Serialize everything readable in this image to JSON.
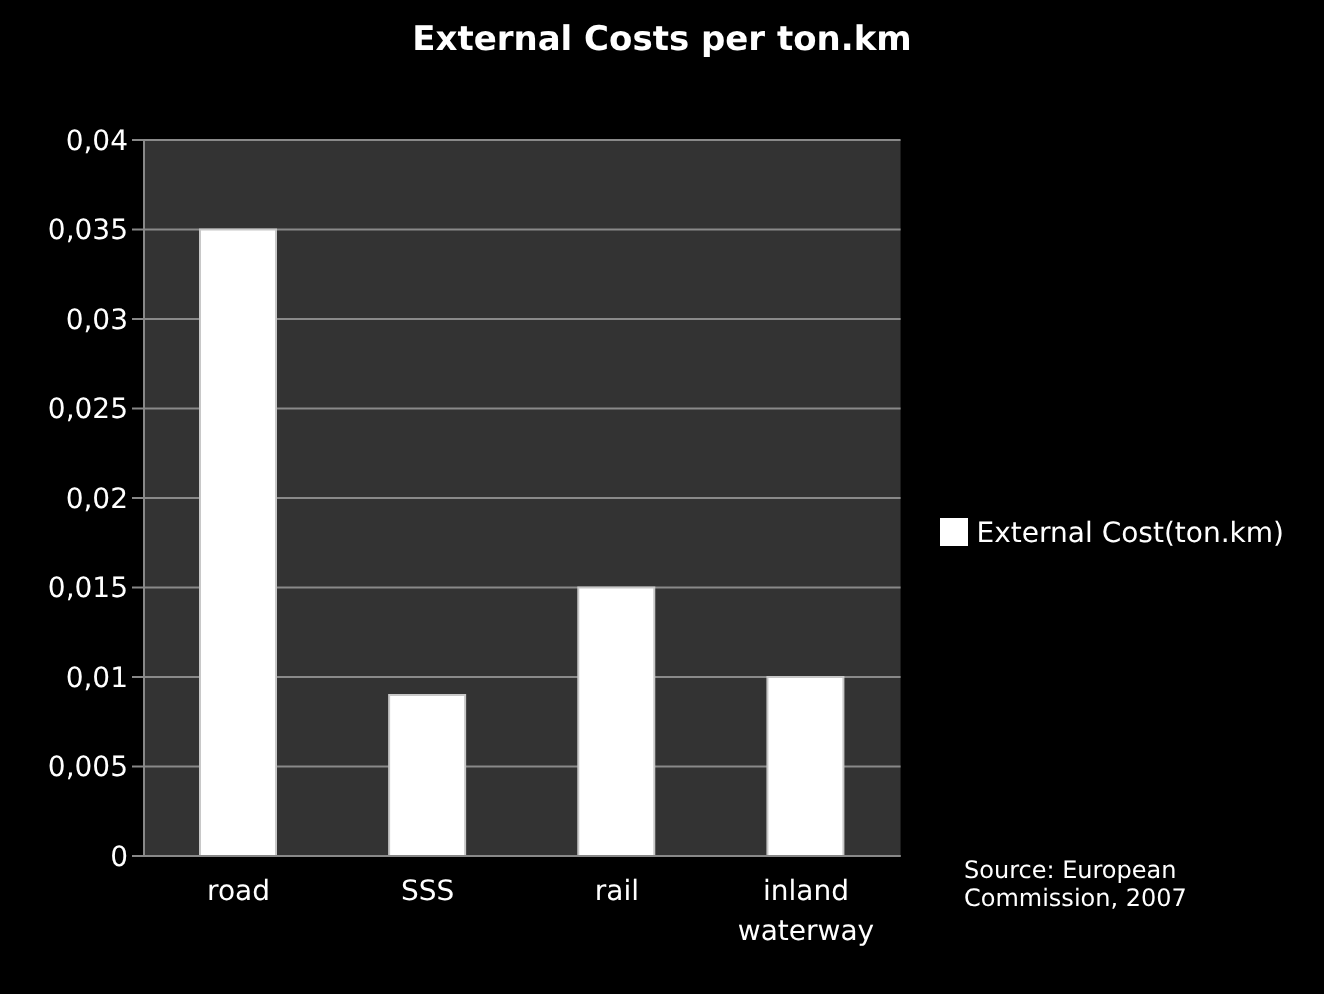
{
  "chart_data": {
    "type": "bar",
    "title": "External Costs per ton.km",
    "categories": [
      "road",
      "SSS",
      "rail",
      "inland waterway"
    ],
    "series": [
      {
        "name": "External Cost(ton.km)",
        "color": "#ffffff",
        "values": [
          0.035,
          0.009,
          0.015,
          0.01
        ]
      }
    ],
    "ylim": [
      0,
      0.04
    ],
    "yticks": [
      {
        "value": 0,
        "label": "0"
      },
      {
        "value": 0.005,
        "label": "0,005"
      },
      {
        "value": 0.01,
        "label": "0,01"
      },
      {
        "value": 0.015,
        "label": "0,015"
      },
      {
        "value": 0.02,
        "label": "0,02"
      },
      {
        "value": 0.025,
        "label": "0,025"
      },
      {
        "value": 0.03,
        "label": "0,03"
      },
      {
        "value": 0.035,
        "label": "0,035"
      },
      {
        "value": 0.04,
        "label": "0,04"
      }
    ],
    "grid": "y",
    "legend": "right",
    "annotations": [
      "Source: European Commission, 2007"
    ]
  }
}
